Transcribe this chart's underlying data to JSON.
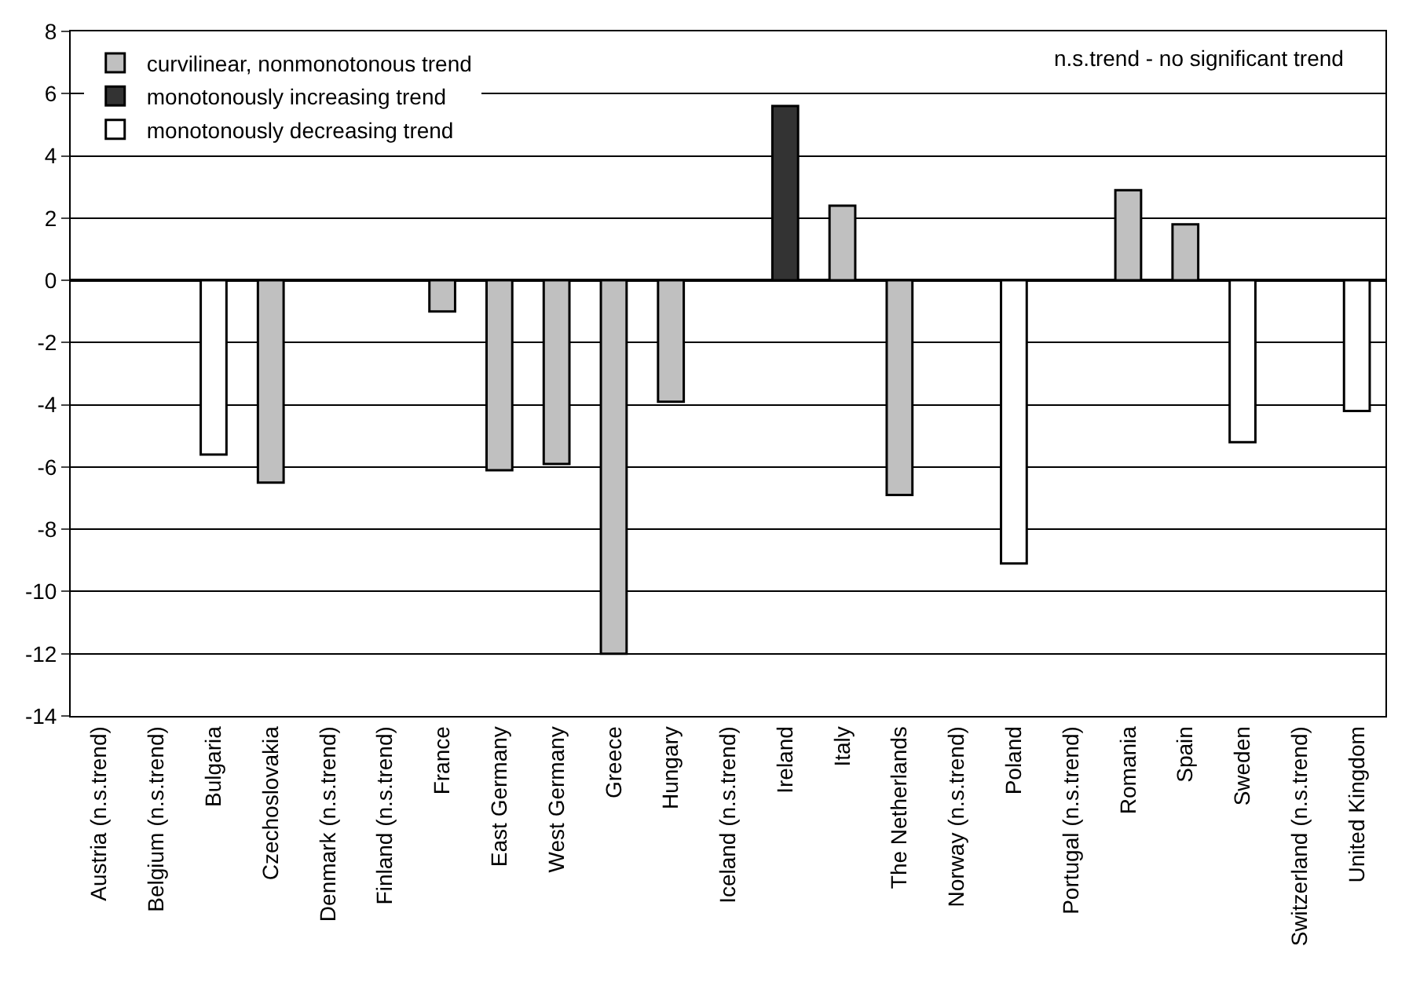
{
  "chart_data": {
    "type": "bar",
    "categories": [
      "Austria (n.s.trend)",
      "Belgium (n.s.trend)",
      "Bulgaria",
      "Czechoslovakia",
      "Denmark (n.s.trend)",
      "Finland (n.s.trend)",
      "France",
      "East Germany",
      "West Germany",
      "Greece",
      "Hungary",
      "Iceland (n.s.trend)",
      "Ireland",
      "Italy",
      "The Netherlands",
      "Norway (n.s.trend)",
      "Poland",
      "Portugal (n.s.trend)",
      "Romania",
      "Spain",
      "Sweden",
      "Switzerland (n.s.trend)",
      "United Kingdom"
    ],
    "series": [
      {
        "name": "curvilinear, nonmonotonous trend",
        "color": "#c0c0c0",
        "values": [
          null,
          null,
          null,
          -6.5,
          null,
          null,
          -1.0,
          -6.1,
          -5.9,
          -12.0,
          -3.9,
          null,
          null,
          2.4,
          -6.9,
          null,
          null,
          null,
          2.9,
          1.8,
          null,
          null,
          null
        ]
      },
      {
        "name": "monotonously increasing trend",
        "color": "#333333",
        "values": [
          null,
          null,
          null,
          null,
          null,
          null,
          null,
          null,
          null,
          null,
          null,
          null,
          5.6,
          null,
          null,
          null,
          null,
          null,
          null,
          null,
          null,
          null,
          null
        ]
      },
      {
        "name": "monotonously decreasing trend",
        "color": "#ffffff",
        "values": [
          null,
          null,
          -5.6,
          null,
          null,
          null,
          null,
          null,
          null,
          null,
          null,
          null,
          null,
          null,
          null,
          null,
          -9.1,
          null,
          null,
          null,
          -5.2,
          null,
          -4.2
        ]
      }
    ],
    "ylim": [
      -14,
      8
    ],
    "yticks": [
      -14,
      -12,
      -10,
      -8,
      -6,
      -4,
      -2,
      0,
      2,
      4,
      6,
      8
    ],
    "grid": "y",
    "legend": "top left",
    "annotations": [
      "n.s.trend - no significant trend"
    ]
  }
}
